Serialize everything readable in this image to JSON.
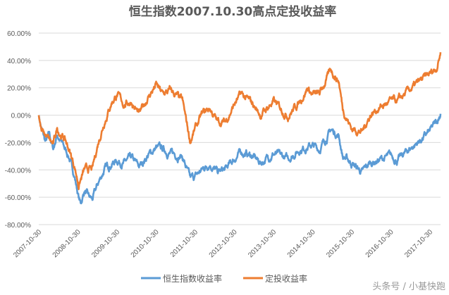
{
  "chart_data": {
    "type": "line",
    "title": "恒生指数2007.10.30高点定投收益率",
    "xlabel": "",
    "ylabel": "",
    "ylim": [
      -80,
      60
    ],
    "yticks": [
      "60.00%",
      "40.00%",
      "20.00%",
      "0.00%",
      "-20.00%",
      "-40.00%",
      "-60.00%",
      "-80.00%"
    ],
    "ytick_values": [
      60,
      40,
      20,
      0,
      -20,
      -40,
      -60,
      -80
    ],
    "xticks": [
      "2007-10-30",
      "2008-10-30",
      "2009-10-30",
      "2010-10-30",
      "2011-10-30",
      "2012-10-30",
      "2013-10-30",
      "2014-10-30",
      "2015-10-30",
      "2016-10-30",
      "2017-10-30"
    ],
    "xtick_values": [
      2007.83,
      2008.83,
      2009.83,
      2010.83,
      2011.83,
      2012.83,
      2013.83,
      2014.83,
      2015.83,
      2016.83,
      2017.83
    ],
    "xlim": [
      2007.83,
      2018.1
    ],
    "grid": true,
    "legend_position": "bottom",
    "series": [
      {
        "name": "恒生指数收益率",
        "color": "#5b9bd5",
        "x": [
          2007.83,
          2007.9,
          2008.0,
          2008.1,
          2008.2,
          2008.3,
          2008.5,
          2008.6,
          2008.75,
          2008.85,
          2008.9,
          2009.0,
          2009.1,
          2009.2,
          2009.35,
          2009.5,
          2009.7,
          2009.83,
          2010.0,
          2010.2,
          2010.4,
          2010.6,
          2010.83,
          2011.0,
          2011.2,
          2011.5,
          2011.7,
          2011.83,
          2012.0,
          2012.2,
          2012.4,
          2012.6,
          2012.83,
          2013.0,
          2013.3,
          2013.5,
          2013.83,
          2014.0,
          2014.2,
          2014.5,
          2014.8,
          2015.0,
          2015.3,
          2015.5,
          2015.6,
          2015.83,
          2016.1,
          2016.3,
          2016.5,
          2016.83,
          2017.0,
          2017.3,
          2017.6,
          2017.83,
          2018.0,
          2018.1
        ],
        "y": [
          0,
          -10,
          -20,
          -15,
          -25,
          -14,
          -25,
          -30,
          -45,
          -60,
          -65,
          -55,
          -60,
          -62,
          -50,
          -40,
          -35,
          -33,
          -35,
          -32,
          -38,
          -30,
          -24,
          -25,
          -28,
          -30,
          -47,
          -45,
          -40,
          -35,
          -42,
          -40,
          -32,
          -27,
          -30,
          -35,
          -28,
          -30,
          -32,
          -25,
          -22,
          -25,
          -11,
          -15,
          -30,
          -35,
          -42,
          -35,
          -33,
          -30,
          -33,
          -25,
          -18,
          -12,
          -5,
          1
        ]
      },
      {
        "name": "定投收益率",
        "color": "#ed7d31",
        "x": [
          2007.83,
          2007.9,
          2008.0,
          2008.2,
          2008.3,
          2008.5,
          2008.6,
          2008.75,
          2008.85,
          2009.0,
          2009.2,
          2009.35,
          2009.5,
          2009.7,
          2009.83,
          2010.0,
          2010.2,
          2010.4,
          2010.6,
          2010.83,
          2011.0,
          2011.2,
          2011.5,
          2011.7,
          2011.83,
          2012.0,
          2012.2,
          2012.4,
          2012.6,
          2012.83,
          2013.0,
          2013.3,
          2013.5,
          2013.83,
          2014.0,
          2014.2,
          2014.5,
          2014.7,
          2014.83,
          2015.0,
          2015.3,
          2015.5,
          2015.6,
          2015.83,
          2016.1,
          2016.3,
          2016.5,
          2016.83,
          2017.0,
          2017.3,
          2017.6,
          2017.83,
          2018.0,
          2018.1
        ],
        "y": [
          0,
          -12,
          -15,
          -22,
          -10,
          -18,
          -25,
          -38,
          -51,
          -40,
          -40,
          -20,
          -5,
          10,
          15,
          8,
          10,
          0,
          12,
          22,
          15,
          18,
          10,
          -19,
          -10,
          0,
          5,
          -5,
          -5,
          8,
          15,
          8,
          0,
          10,
          5,
          0,
          10,
          20,
          15,
          15,
          33,
          25,
          5,
          -10,
          -12,
          0,
          5,
          10,
          10,
          18,
          25,
          30,
          35,
          46
        ]
      }
    ]
  },
  "watermark": "头条号 / 小基快跑"
}
